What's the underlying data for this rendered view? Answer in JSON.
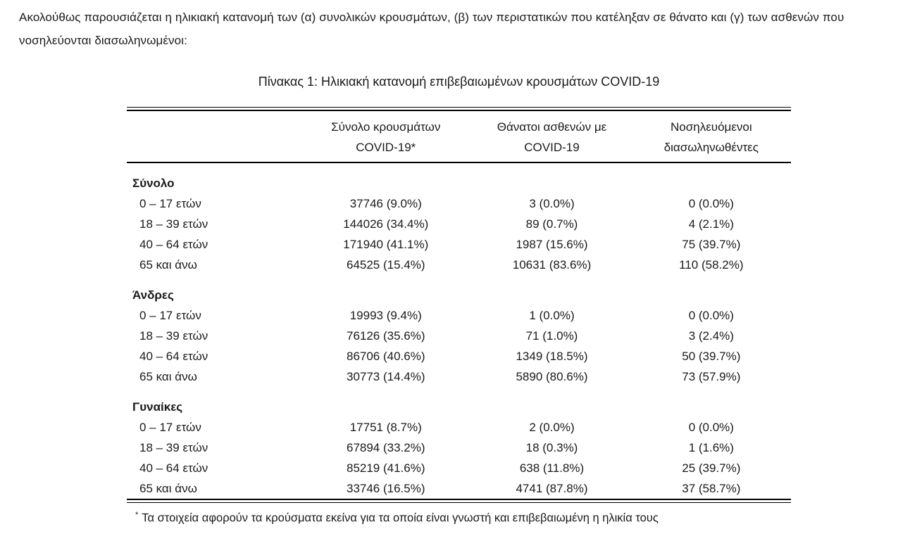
{
  "intro": "Ακολούθως παρουσιάζεται η ηλικιακή κατανομή των (α) συνολικών κρουσμάτων, (β) των περιστατικών που κατέληξαν σε θάνατο και (γ) των ασθενών που νοσηλεύονται διασωληνωμένοι:",
  "table": {
    "title": "Πίνακας 1: Ηλικιακή κατανομή επιβεβαιωμένων κρουσμάτων COVID-19",
    "header": {
      "col_cases": {
        "line1": "Σύνολο κρουσμάτων",
        "line2": "COVID-19*"
      },
      "col_deaths": {
        "line1": "Θάνατοι ασθενών με",
        "line2": "COVID-19"
      },
      "col_intubated": {
        "line1": "Νοσηλευόμενοι",
        "line2": "διασωληνωθέντες"
      }
    },
    "sections": [
      {
        "label": "Σύνολο",
        "rows": [
          {
            "age": "0 – 17 ετών",
            "cases": "37746 (9.0%)",
            "deaths": "3 (0.0%)",
            "intubated": "0 (0.0%)"
          },
          {
            "age": "18 – 39 ετών",
            "cases": "144026 (34.4%)",
            "deaths": "89 (0.7%)",
            "intubated": "4 (2.1%)"
          },
          {
            "age": "40 – 64 ετών",
            "cases": "171940 (41.1%)",
            "deaths": "1987 (15.6%)",
            "intubated": "75 (39.7%)"
          },
          {
            "age": "65 και άνω",
            "cases": "64525 (15.4%)",
            "deaths": "10631 (83.6%)",
            "intubated": "110 (58.2%)"
          }
        ]
      },
      {
        "label": "Άνδρες",
        "rows": [
          {
            "age": "0 – 17 ετών",
            "cases": "19993 (9.4%)",
            "deaths": "1 (0.0%)",
            "intubated": "0 (0.0%)"
          },
          {
            "age": "18 – 39 ετών",
            "cases": "76126 (35.6%)",
            "deaths": "71 (1.0%)",
            "intubated": "3 (2.4%)"
          },
          {
            "age": "40 – 64 ετών",
            "cases": "86706 (40.6%)",
            "deaths": "1349 (18.5%)",
            "intubated": "50 (39.7%)"
          },
          {
            "age": "65 και άνω",
            "cases": "30773 (14.4%)",
            "deaths": "5890 (80.6%)",
            "intubated": "73 (57.9%)"
          }
        ]
      },
      {
        "label": "Γυναίκες",
        "rows": [
          {
            "age": "0 – 17 ετών",
            "cases": "17751 (8.7%)",
            "deaths": "2 (0.0%)",
            "intubated": "0 (0.0%)"
          },
          {
            "age": "18 – 39 ετών",
            "cases": "67894 (33.2%)",
            "deaths": "18 (0.3%)",
            "intubated": "1 (1.6%)"
          },
          {
            "age": "40 – 64 ετών",
            "cases": "85219 (41.6%)",
            "deaths": "638 (11.8%)",
            "intubated": "25 (39.7%)"
          },
          {
            "age": "65 και άνω",
            "cases": "33746 (16.5%)",
            "deaths": "4741 (87.8%)",
            "intubated": "37 (58.7%)"
          }
        ]
      }
    ],
    "footnote_marker": "*",
    "footnote": "Τα στοιχεία αφορούν τα κρούσματα εκείνα για τα οποία είναι γνωστή και επιβεβαιωμένη η ηλικία τους"
  }
}
